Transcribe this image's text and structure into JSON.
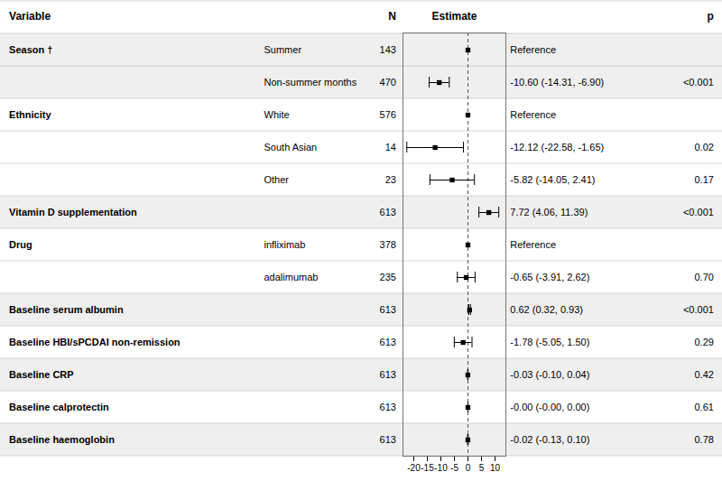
{
  "chart_data": {
    "type": "forest",
    "headers": {
      "variable": "Variable",
      "n": "N",
      "estimate": "Estimate",
      "p": "p"
    },
    "variables": [
      "Season †",
      null,
      "Ethnicity",
      null,
      null,
      "Vitamin D supplementation",
      "Drug",
      null,
      "Baseline serum albumin",
      "Baseline HBI/sPCDAI non-remission",
      "Baseline CRP",
      "Baseline calprotectin",
      "Baseline haemoglobin"
    ],
    "subgroups": [
      "Summer",
      "Non-summer months",
      "White",
      "South Asian",
      "Other",
      null,
      "infliximab",
      "adalimumab",
      null,
      null,
      null,
      null,
      null
    ],
    "n": [
      143,
      470,
      576,
      14,
      23,
      613,
      378,
      235,
      613,
      613,
      613,
      613,
      613
    ],
    "values": [
      0,
      -10.6,
      0,
      -12.12,
      -5.82,
      7.72,
      0,
      -0.65,
      0.62,
      -1.78,
      -0.03,
      0.0,
      -0.02
    ],
    "ci_low": [
      null,
      -14.31,
      null,
      -22.58,
      -14.05,
      4.06,
      null,
      -3.91,
      0.32,
      -5.05,
      -0.1,
      -0.001,
      -0.13
    ],
    "ci_high": [
      null,
      -6.9,
      null,
      -1.65,
      2.41,
      11.39,
      null,
      2.62,
      0.93,
      1.5,
      0.04,
      0.001,
      0.1
    ],
    "estimate_labels": [
      "Reference",
      "-10.60 (-14.31, -6.90)",
      "Reference",
      "-12.12 (-22.58, -1.65)",
      "-5.82 (-14.05, 2.41)",
      "7.72 (4.06, 11.39)",
      "Reference",
      "-0.65 (-3.91, 2.62)",
      "0.62 (0.32, 0.93)",
      "-1.78 (-5.05, 1.50)",
      "-0.03 (-0.10, 0.04)",
      "-0.00 (-0.00, 0.00)",
      "-0.02 (-0.13, 0.10)"
    ],
    "p_labels": [
      null,
      "<0.001",
      null,
      "0.02",
      "0.17",
      "<0.001",
      null,
      "0.70",
      "<0.001",
      "0.29",
      "0.42",
      "0.61",
      "0.78"
    ],
    "reference": [
      true,
      false,
      true,
      false,
      false,
      false,
      true,
      false,
      false,
      false,
      false,
      false,
      false
    ],
    "bold": [
      true,
      false,
      true,
      false,
      false,
      true,
      true,
      false,
      true,
      true,
      true,
      true,
      true
    ],
    "xlim": [
      -24,
      14
    ],
    "xticks": [
      -20,
      -15,
      -10,
      -5,
      0,
      5,
      10
    ]
  }
}
